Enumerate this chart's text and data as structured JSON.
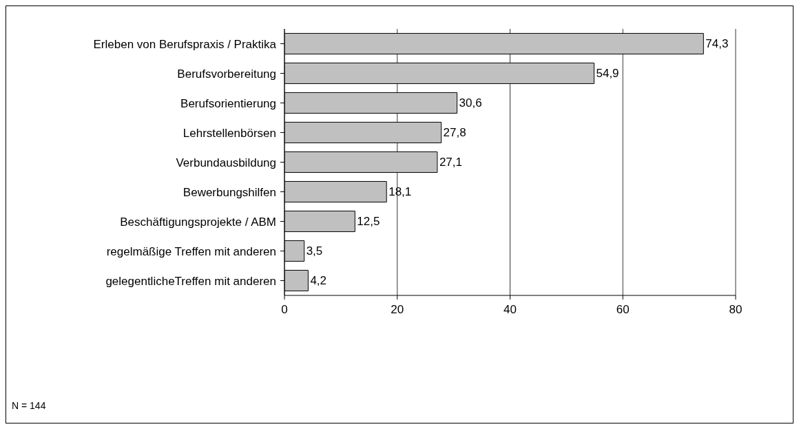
{
  "chart_data": {
    "type": "bar",
    "orientation": "horizontal",
    "categories": [
      "Erleben von Berufspraxis / Praktika",
      "Berufsvorbereitung",
      "Berufsorientierung",
      "Lehrstellenbörsen",
      "Verbundausbildung",
      "Bewerbungshilfen",
      "Beschäftigungsprojekte / ABM",
      "regelmäßige Treffen mit anderen",
      "gelegentlicheTreffen mit anderen"
    ],
    "values": [
      74.3,
      54.9,
      30.6,
      27.8,
      27.1,
      18.1,
      12.5,
      3.5,
      4.2
    ],
    "value_labels": [
      "74,3",
      "54,9",
      "30,6",
      "27,8",
      "27,1",
      "18,1",
      "12,5",
      "3,5",
      "4,2"
    ],
    "color": "#c0c0c0",
    "xlim": [
      0,
      80
    ],
    "xticks": [
      0,
      20,
      40,
      60,
      80
    ],
    "grid": "x",
    "annotations": [
      "N = 144"
    ]
  }
}
